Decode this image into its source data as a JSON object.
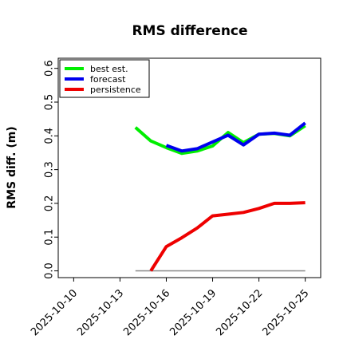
{
  "chart_data": {
    "type": "line",
    "title": "RMS difference",
    "xlabel": "",
    "ylabel": "RMS diff. (m)",
    "ylim": [
      -0.02,
      0.63
    ],
    "yticks": [
      "0.0",
      "0.1",
      "0.2",
      "0.3",
      "0.4",
      "0.5",
      "0.6"
    ],
    "xlim": [
      "2025-10-09",
      "2025-10-26"
    ],
    "xticks": [
      "2025-10-10",
      "2025-10-13",
      "2025-10-16",
      "2025-10-19",
      "2025-10-22",
      "2025-10-25"
    ],
    "highlighted_xtick": "2025-10-16",
    "highlight_color": "#228b22",
    "grid": false,
    "legend_position": "top-left",
    "series": [
      {
        "name": "best est.",
        "color": "#00ee00",
        "x": [
          "2025-10-14",
          "2025-10-15",
          "2025-10-16",
          "2025-10-17",
          "2025-10-18",
          "2025-10-19",
          "2025-10-20",
          "2025-10-21",
          "2025-10-22",
          "2025-10-23",
          "2025-10-24",
          "2025-10-25"
        ],
        "values": [
          0.425,
          0.385,
          0.365,
          0.348,
          0.355,
          0.37,
          0.41,
          0.38,
          0.405,
          0.407,
          0.4,
          0.43
        ]
      },
      {
        "name": "forecast",
        "color": "#0000ee",
        "x": [
          "2025-10-16",
          "2025-10-17",
          "2025-10-18",
          "2025-10-19",
          "2025-10-20",
          "2025-10-21",
          "2025-10-22",
          "2025-10-23",
          "2025-10-24",
          "2025-10-25"
        ],
        "values": [
          0.372,
          0.355,
          0.362,
          0.382,
          0.402,
          0.373,
          0.405,
          0.408,
          0.402,
          0.438
        ]
      },
      {
        "name": "persistence",
        "color": "#ee0000",
        "x": [
          "2025-10-15",
          "2025-10-16",
          "2025-10-17",
          "2025-10-18",
          "2025-10-19",
          "2025-10-20",
          "2025-10-21",
          "2025-10-22",
          "2025-10-23",
          "2025-10-24",
          "2025-10-25"
        ],
        "values": [
          0.0,
          0.072,
          0.098,
          0.127,
          0.163,
          0.168,
          0.173,
          0.185,
          0.2,
          0.2,
          0.202
        ]
      }
    ],
    "reference_line": {
      "color": "#888888",
      "x": [
        "2025-10-14",
        "2025-10-25"
      ],
      "value": 0.0
    }
  }
}
